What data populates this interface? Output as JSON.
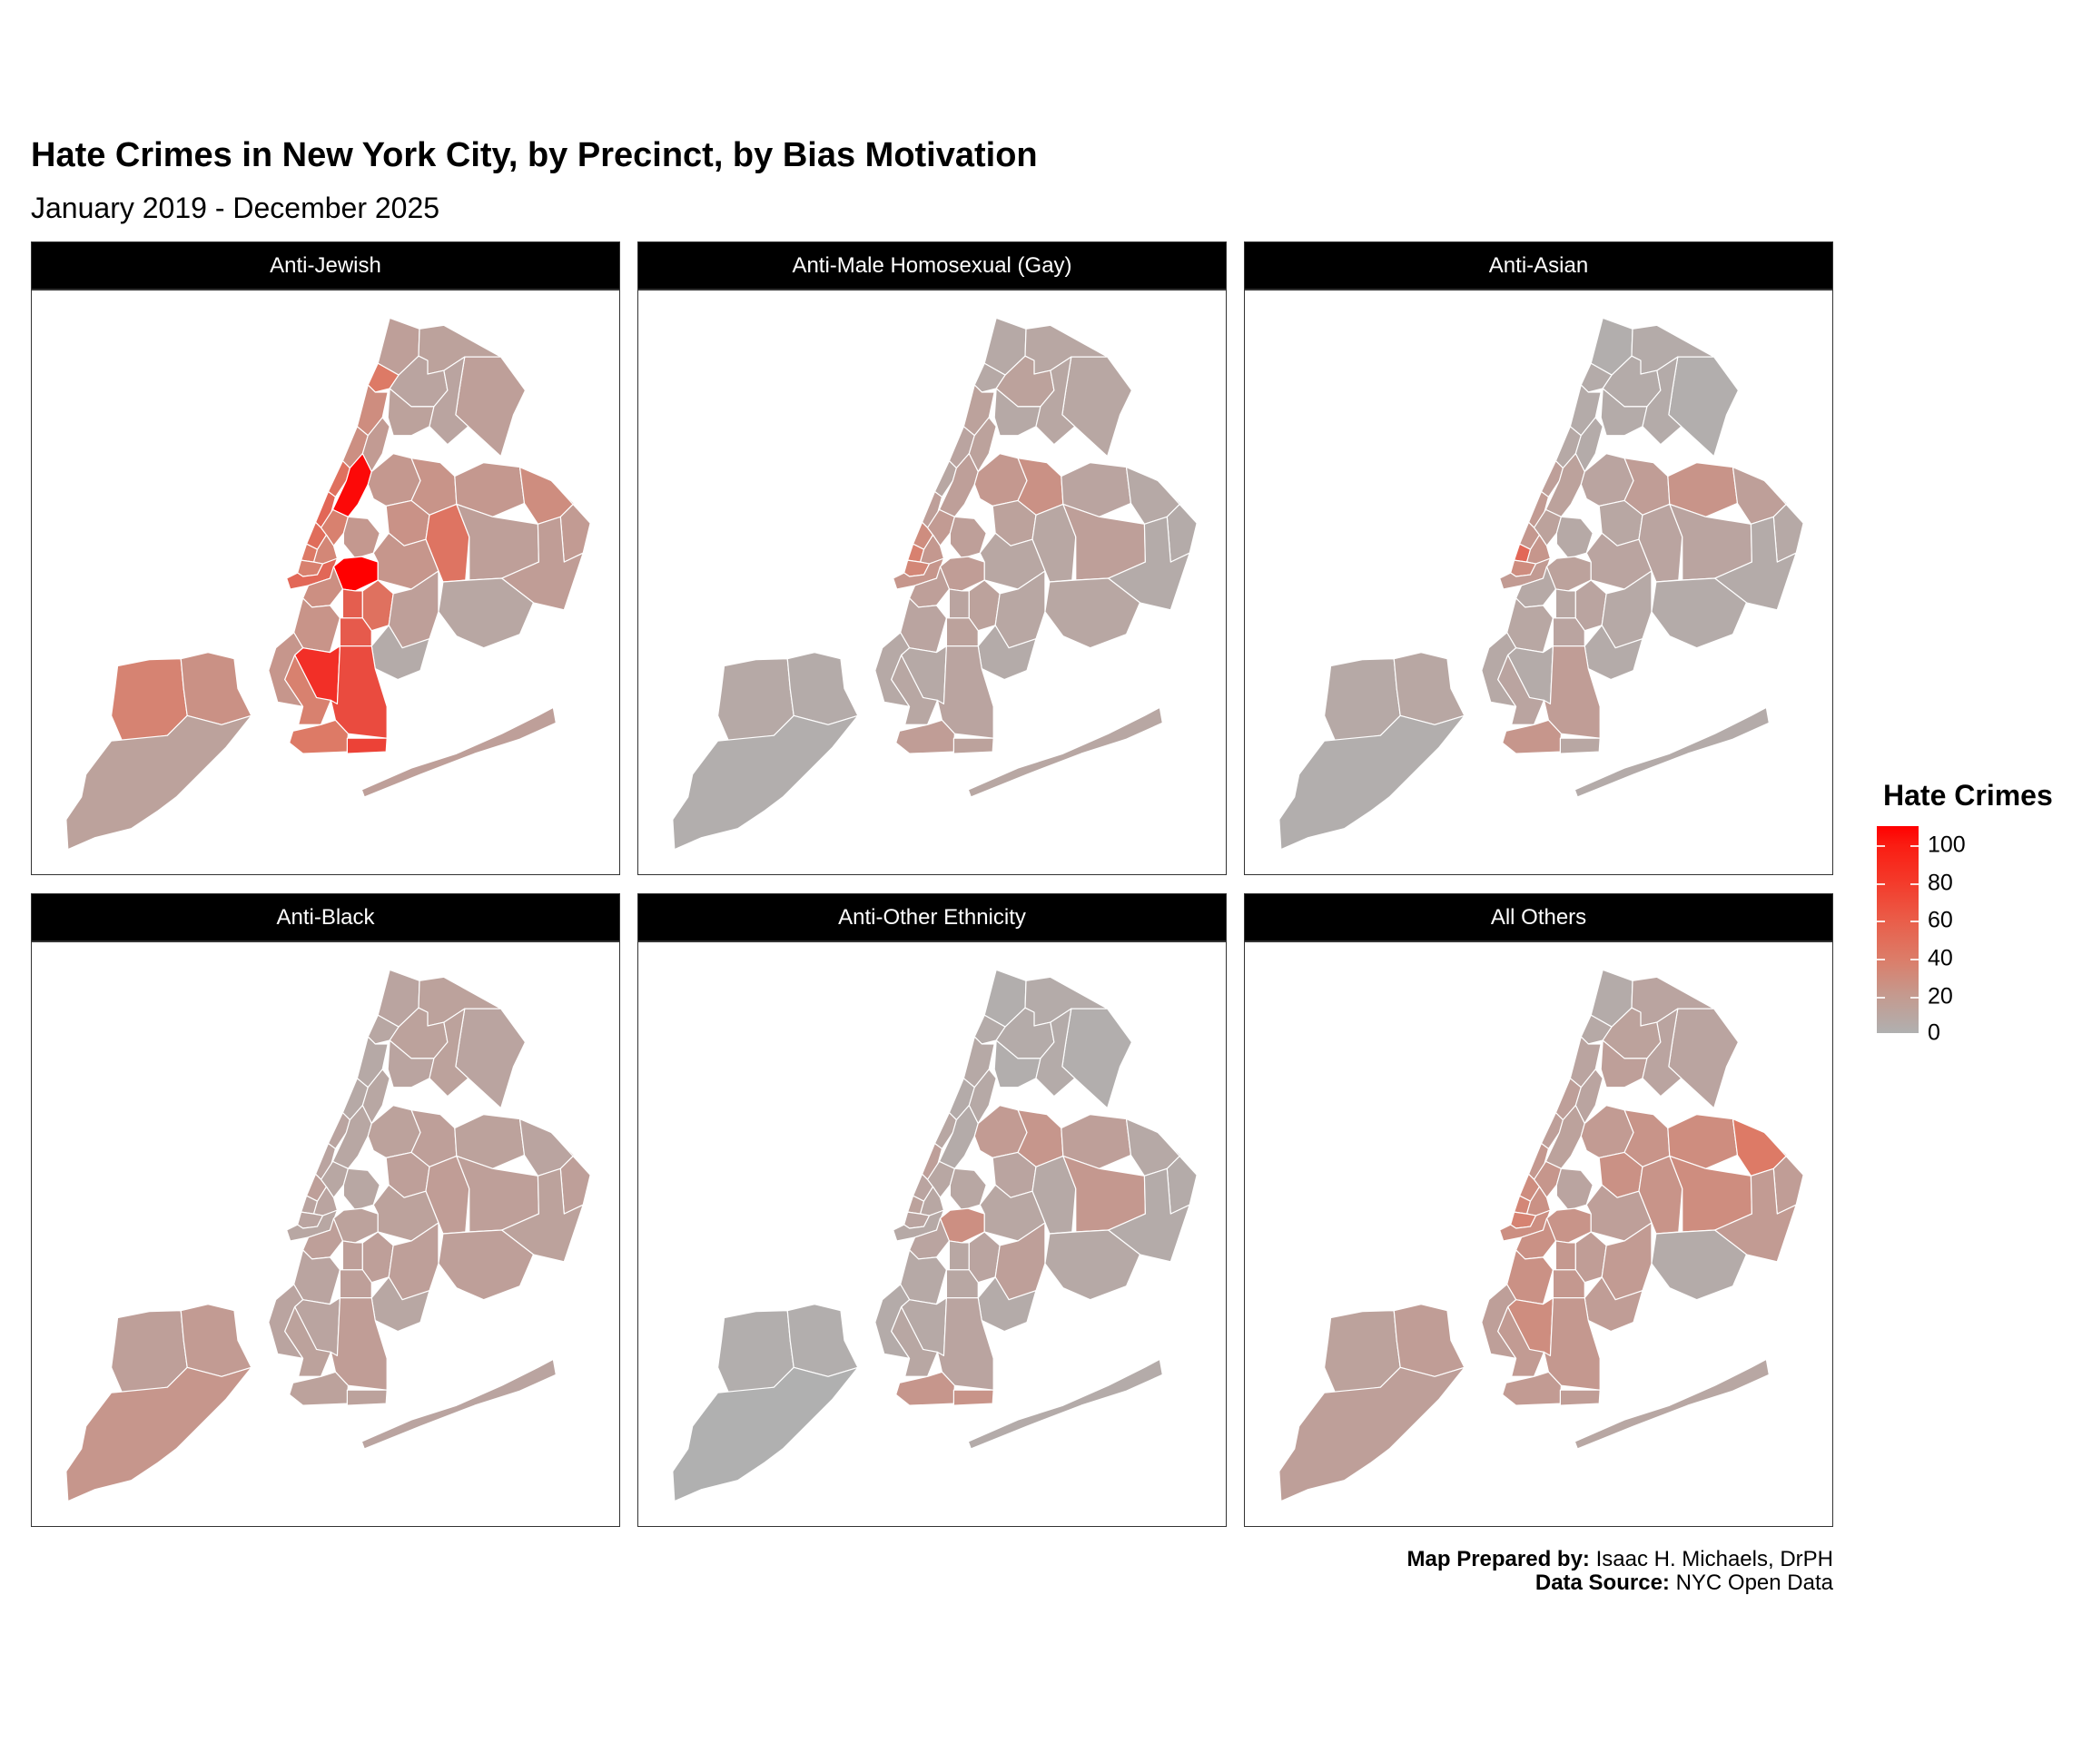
{
  "title": "Hate Crimes in New York City, by Precinct, by Bias Motivation",
  "subtitle": "January 2019 - December 2025",
  "legend": {
    "title": "Hate Crimes",
    "ticks": [
      "100",
      "80",
      "60",
      "40",
      "20",
      "0"
    ],
    "low_color": "#b0b0b0",
    "high_color": "#ff0000",
    "max_value": 110
  },
  "footer": {
    "prepared_label": "Map Prepared by:",
    "prepared_value": " Isaac H. Michaels, DrPH",
    "source_label": "Data Source:",
    "source_value": " NYC Open Data"
  },
  "panels": [
    {
      "label": "Anti-Jewish"
    },
    {
      "label": "Anti-Male Homosexual (Gay)"
    },
    {
      "label": "Anti-Asian"
    },
    {
      "label": "Anti-Black"
    },
    {
      "label": "Anti-Other Ethnicity"
    },
    {
      "label": "All Others"
    }
  ],
  "chart_data": {
    "type": "heatmap",
    "subtype": "choropleth-small-multiples",
    "title": "Hate Crimes in New York City, by Precinct, by Bias Motivation",
    "subtitle": "January 2019 - December 2025",
    "legend": {
      "title": "Hate Crimes",
      "range": [
        0,
        110
      ],
      "ticks": [
        0,
        20,
        40,
        60,
        80,
        100
      ],
      "low": "#b0b0b0",
      "high": "#ff0000",
      "position": "right"
    },
    "facets": [
      "Anti-Jewish",
      "Anti-Male Homosexual (Gay)",
      "Anti-Asian",
      "Anti-Black",
      "Anti-Other Ethnicity",
      "All Others"
    ],
    "regions": [
      "si_north",
      "si_northeast",
      "si_south",
      "mn_inwood",
      "mn_washhts",
      "mn_harlem_w",
      "mn_harlem_e",
      "mn_uws_n",
      "mn_uws",
      "mn_ues",
      "mn_midtown_w",
      "mn_midtown_e",
      "mn_chelsea",
      "mn_gramercy",
      "mn_village",
      "mn_lower",
      "bx_riverdale",
      "bx_north",
      "bx_east",
      "bx_central",
      "bx_south",
      "bx_southeast",
      "qn_astoria",
      "qn_jackson",
      "qn_flushing",
      "qn_bayside",
      "qn_northeast",
      "qn_forest",
      "qn_fresh",
      "qn_jamaica",
      "qn_southeast",
      "qn_ozone",
      "qn_rockaway",
      "bk_greenpoint",
      "bk_williamsburg",
      "bk_bushwick",
      "bk_heights",
      "bk_crownhts",
      "bk_flatbush",
      "bk_eastny",
      "bk_canarsie",
      "bk_sunset",
      "bk_bayridge",
      "bk_midwood",
      "bk_boropark",
      "bk_bensonhurst",
      "bk_sheepshead",
      "bk_coney",
      "bk_brighton"
    ],
    "series": [
      {
        "name": "Anti-Jewish",
        "values": [
          38,
          26,
          12,
          45,
          30,
          28,
          18,
          50,
          55,
          105,
          52,
          40,
          45,
          35,
          40,
          55,
          14,
          12,
          14,
          10,
          12,
          10,
          20,
          24,
          20,
          30,
          18,
          25,
          48,
          14,
          16,
          8,
          14,
          20,
          110,
          22,
          28,
          60,
          50,
          14,
          4,
          24,
          22,
          62,
          85,
          40,
          70,
          45,
          75
        ]
      },
      {
        "name": "Anti-Male Homosexual (Gay)",
        "values": [
          6,
          4,
          2,
          6,
          12,
          10,
          12,
          8,
          14,
          14,
          30,
          18,
          40,
          20,
          35,
          22,
          6,
          8,
          8,
          12,
          6,
          8,
          20,
          26,
          10,
          6,
          4,
          12,
          8,
          14,
          4,
          8,
          8,
          14,
          16,
          8,
          14,
          10,
          12,
          8,
          4,
          10,
          6,
          12,
          6,
          8,
          10,
          16,
          12
        ]
      },
      {
        "name": "Anti-Asian",
        "values": [
          6,
          8,
          2,
          4,
          4,
          6,
          4,
          14,
          18,
          12,
          20,
          12,
          55,
          22,
          30,
          18,
          2,
          4,
          2,
          4,
          4,
          4,
          10,
          16,
          24,
          14,
          6,
          8,
          10,
          10,
          4,
          4,
          4,
          6,
          12,
          10,
          6,
          8,
          10,
          6,
          4,
          8,
          6,
          10,
          4,
          10,
          16,
          22,
          8
        ]
      },
      {
        "name": "Anti-Black",
        "values": [
          14,
          18,
          22,
          8,
          6,
          6,
          8,
          10,
          10,
          8,
          14,
          8,
          10,
          10,
          10,
          8,
          10,
          12,
          10,
          12,
          10,
          12,
          12,
          14,
          12,
          10,
          14,
          14,
          16,
          14,
          12,
          14,
          10,
          8,
          12,
          12,
          14,
          14,
          14,
          14,
          8,
          10,
          10,
          14,
          10,
          12,
          16,
          12,
          12
        ]
      },
      {
        "name": "Anti-Other Ethnicity",
        "values": [
          2,
          2,
          0,
          4,
          6,
          4,
          6,
          8,
          14,
          4,
          10,
          8,
          12,
          8,
          10,
          6,
          2,
          4,
          2,
          4,
          2,
          4,
          18,
          22,
          14,
          6,
          4,
          10,
          6,
          20,
          4,
          6,
          4,
          8,
          28,
          8,
          10,
          8,
          10,
          14,
          4,
          6,
          4,
          8,
          6,
          8,
          10,
          22,
          24
        ]
      },
      {
        "name": "All Others",
        "values": [
          12,
          16,
          14,
          6,
          10,
          14,
          10,
          14,
          20,
          12,
          30,
          22,
          35,
          26,
          38,
          28,
          4,
          10,
          10,
          12,
          14,
          10,
          18,
          24,
          30,
          45,
          16,
          26,
          24,
          30,
          18,
          4,
          8,
          10,
          24,
          14,
          26,
          20,
          16,
          18,
          16,
          26,
          14,
          20,
          30,
          18,
          20,
          18,
          16
        ]
      }
    ]
  }
}
